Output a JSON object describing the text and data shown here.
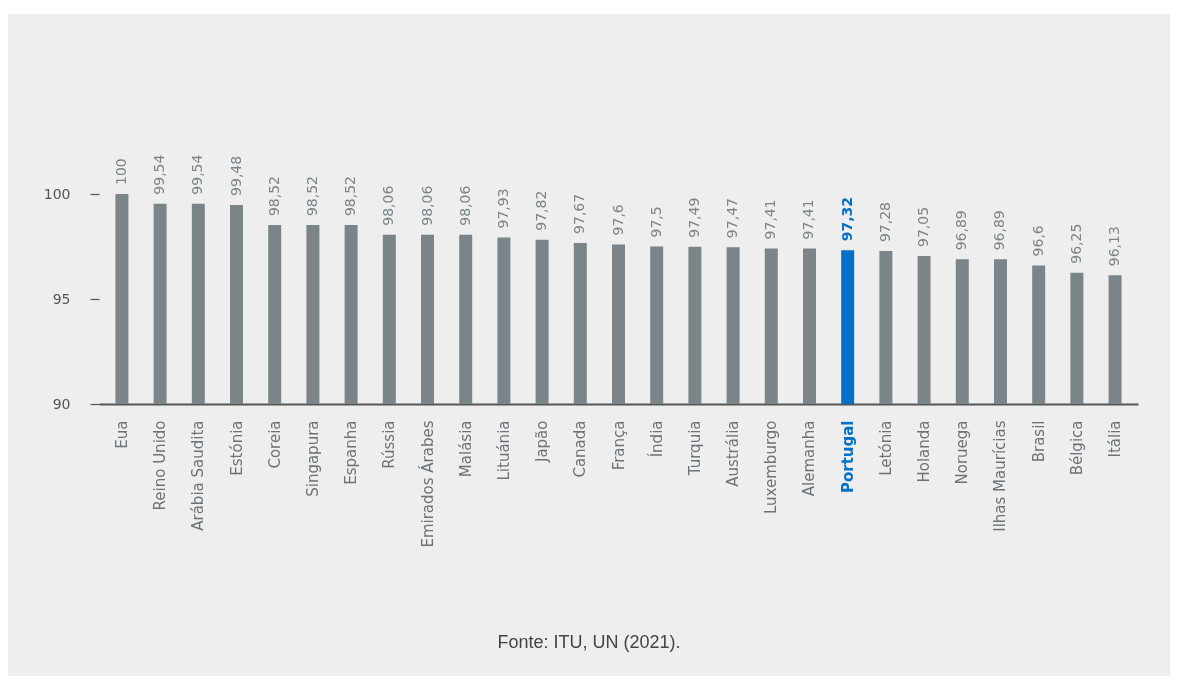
{
  "chart_data": {
    "type": "bar",
    "categories": [
      "Eua",
      "Reino Unido",
      "Arábia Saudita",
      "Estónia",
      "Coreia",
      "Singapura",
      "Espanha",
      "Rússia",
      "Emirados Árabes",
      "Malásia",
      "Lituánia",
      "Japão",
      "Canada",
      "França",
      "Índia",
      "Turquia",
      "Austrália",
      "Luxemburgo",
      "Alemanha",
      "Portugal",
      "Letónia",
      "Holanda",
      "Noruega",
      "Ilhas Maurícias",
      "Brasil",
      "Bélgica",
      "Itália"
    ],
    "values": [
      100,
      99.54,
      99.54,
      99.48,
      98.52,
      98.52,
      98.52,
      98.06,
      98.06,
      98.06,
      97.93,
      97.82,
      97.67,
      97.6,
      97.5,
      97.49,
      97.47,
      97.41,
      97.41,
      97.32,
      97.28,
      97.05,
      96.89,
      96.89,
      96.6,
      96.25,
      96.13
    ],
    "value_labels": [
      "100",
      "99,54",
      "99,54",
      "99,48",
      "98,52",
      "98,52",
      "98,52",
      "98,06",
      "98,06",
      "98,06",
      "97,93",
      "97,82",
      "97,67",
      "97,6",
      "97,5",
      "97,49",
      "97,47",
      "97,41",
      "97,41",
      "97,32",
      "97,28",
      "97,05",
      "96,89",
      "96,89",
      "96,6",
      "96,25",
      "96,13"
    ],
    "colors": [
      "#7b8489",
      "#7b8489",
      "#7b8489",
      "#7b8489",
      "#7b8489",
      "#7b8489",
      "#7b8489",
      "#7b8489",
      "#7b8489",
      "#7b8489",
      "#7b8489",
      "#7b8489",
      "#7b8489",
      "#7b8489",
      "#7b8489",
      "#7b8489",
      "#7b8489",
      "#7b8489",
      "#7b8489",
      "#0070c8",
      "#7b8489",
      "#7b8489",
      "#7b8489",
      "#7b8489",
      "#7b8489",
      "#7b8489",
      "#7b8489"
    ],
    "ylim": [
      90,
      100
    ],
    "yticks": [
      90,
      95,
      100
    ],
    "grid": false,
    "annotations": [
      "Fonte: ITU, UN (2021)."
    ]
  }
}
